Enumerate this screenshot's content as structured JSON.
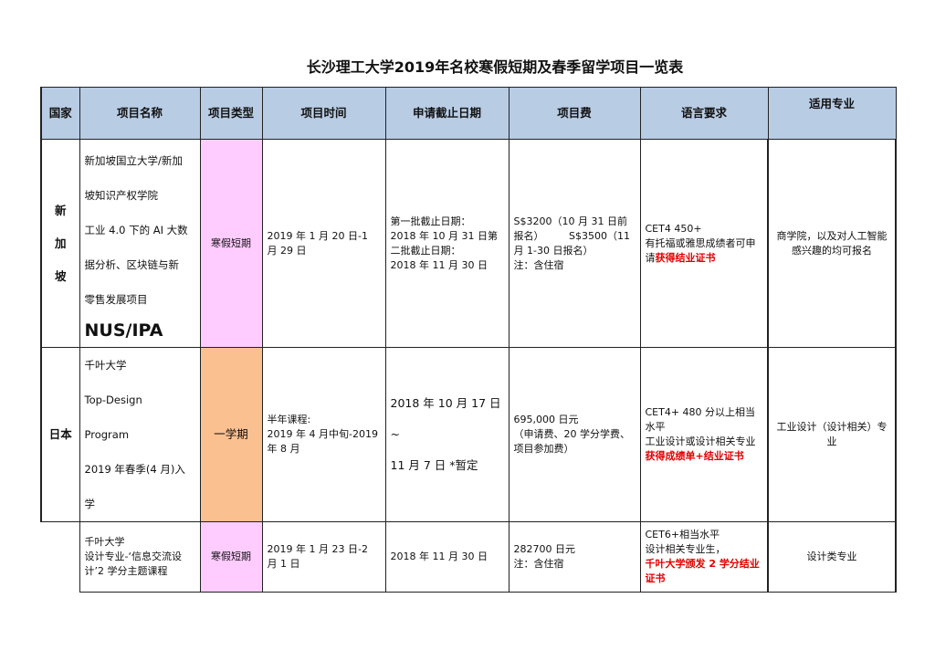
{
  "title": "长沙理工大学2019年名校寒假短期及春季留学项目一览表",
  "headers": [
    "国家",
    "项目名称",
    "项目类型",
    "项目时间",
    "申请截止日期",
    "项目费",
    "语言要求",
    "适用专业"
  ],
  "rows": [
    {
      "country": "新加坡",
      "name_lines": [
        "新加坡国立大学/新加",
        "坡知识产权学院",
        "工业 4.0 下的 AI 大数",
        "据分析、区块链与新",
        "零售发展项目"
      ],
      "name_highlight": "NUS/IPA",
      "type": "寒假短期",
      "time": "2019 年 1 月 20 日-1 月 29 日",
      "deadline_lines": [
        "第一批截止日期：",
        "2018 年 10 月 31 日第二批截止日期：",
        "2018 年 11 月 30 日"
      ],
      "fee_lines": [
        "S$3200（10 月 31 日前报名）　　　S$3500（11 月 1-30 日报名）",
        "注：含住宿"
      ],
      "language_lines": [
        "CET4 450+",
        "有托福或雅思成绩者可申请"
      ],
      "language_red": "获得结业证书",
      "majors": "商学院，以及对人工智能感兴趣的均可报名"
    },
    {
      "country": "日本",
      "name_lines": [
        "千叶大学",
        "Top-Design",
        "Program",
        "2019 年春季(4 月)入",
        "学"
      ],
      "type": "一学期",
      "time_lines": [
        "半年课程:",
        "2019 年 4 月中旬-2019 年 8 月"
      ],
      "deadline_lines": [
        "2018 年 10 月 17 日~",
        "11 月 7 日 *暂定"
      ],
      "fee_lines": [
        "695,000 日元",
        "（申请费、20 学分学费、项目参加费）"
      ],
      "language_lines": [
        "CET4+ 480 分以上相当水平",
        "工业设计或设计相关专业"
      ],
      "language_red": "获得成绩单+结业证书",
      "majors": "工业设计（设计相关）专业"
    },
    {
      "country": "",
      "name_lines": [
        "千叶大学",
        "设计专业-‘信息交流设计’2 学分主题课程"
      ],
      "type": "寒假短期",
      "time": "2019 年 1 月 23 日-2 月 1 日",
      "deadline": "2018 年 11 月 30 日",
      "fee_lines": [
        "282700 日元",
        "注：含住宿"
      ],
      "language_lines": [
        "CET6+相当水平",
        "设计相关专业生，"
      ],
      "language_red": "千叶大学颁发 2 学分结业证书",
      "majors": "设计类专业"
    }
  ],
  "colors": {
    "header_bg": "#b8cce4",
    "winter_bg": "#ffccff",
    "semester_bg": "#fac090",
    "highlight_red": "#e00000"
  }
}
